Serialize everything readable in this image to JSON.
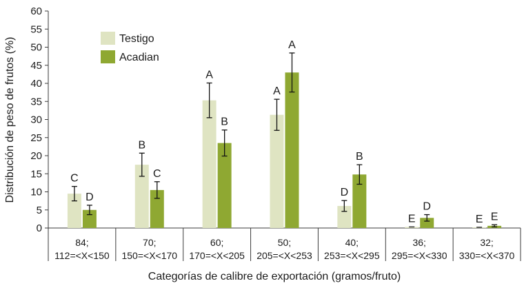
{
  "chart_data": {
    "type": "bar",
    "title": "",
    "xlabel": "Categorías de calibre de exportación (gramos/fruto)",
    "ylabel": "Distribución de peso de frutos (%)",
    "ylim": [
      0,
      60
    ],
    "yticks": [
      0,
      5,
      10,
      15,
      20,
      25,
      30,
      35,
      40,
      45,
      50,
      55,
      60
    ],
    "grid": false,
    "legend_position": "top-left",
    "categories": [
      {
        "line1": "84;",
        "line2": "112=<X<150"
      },
      {
        "line1": "70;",
        "line2": "150=<X<170"
      },
      {
        "line1": "60;",
        "line2": "170=<X<205"
      },
      {
        "line1": "50;",
        "line2": "205=<X<253"
      },
      {
        "line1": "40;",
        "line2": "253=<X<295"
      },
      {
        "line1": "36;",
        "line2": "295=<X<330"
      },
      {
        "line1": "32;",
        "line2": "330=<X<370"
      }
    ],
    "series": [
      {
        "name": "Testigo",
        "color": "#dfe4c2",
        "values": [
          9.5,
          17.5,
          35.3,
          31.3,
          6.1,
          0.3,
          0.2
        ],
        "errors": [
          2.0,
          3.2,
          4.8,
          4.3,
          1.5,
          0.0,
          0.0
        ],
        "labels": [
          "C",
          "B",
          "A",
          "A",
          "D",
          "E",
          "E"
        ]
      },
      {
        "name": "Acadian",
        "color": "#8fa832",
        "values": [
          5.0,
          10.5,
          23.5,
          43.0,
          14.8,
          2.8,
          0.6
        ],
        "errors": [
          1.3,
          2.3,
          3.6,
          5.4,
          2.7,
          0.9,
          0.3
        ],
        "labels": [
          "D",
          "C",
          "B",
          "A",
          "B",
          "D",
          "E"
        ]
      }
    ]
  }
}
